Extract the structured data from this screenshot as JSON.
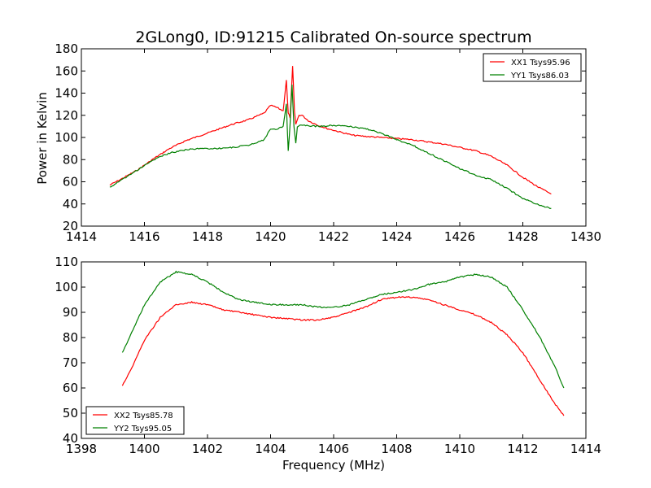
{
  "figure": {
    "xlabel": "Frequency (MHz)"
  },
  "chart_data": [
    {
      "type": "line",
      "title": "2GLong0, ID:91215 Calibrated On-source spectrum",
      "xlabel": "",
      "ylabel": "Power in Kelvin",
      "xlim": [
        1414,
        1430
      ],
      "ylim": [
        20,
        180
      ],
      "xticks": [
        1414,
        1416,
        1418,
        1420,
        1422,
        1424,
        1426,
        1428,
        1430
      ],
      "yticks": [
        20,
        40,
        60,
        80,
        100,
        120,
        140,
        160,
        180
      ],
      "grid": false,
      "legend_position": "top-right",
      "series": [
        {
          "name": "XX1 Tsys95.96",
          "color": "#ff0000",
          "points": [
            [
              1414.9,
              57
            ],
            [
              1415.3,
              63
            ],
            [
              1415.8,
              71
            ],
            [
              1416.3,
              81
            ],
            [
              1416.8,
              90
            ],
            [
              1417.3,
              97
            ],
            [
              1417.8,
              102
            ],
            [
              1418.3,
              107
            ],
            [
              1418.8,
              112
            ],
            [
              1419.3,
              116
            ],
            [
              1419.8,
              122
            ],
            [
              1420.0,
              129
            ],
            [
              1420.2,
              127
            ],
            [
              1420.4,
              124
            ],
            [
              1420.5,
              152
            ],
            [
              1420.56,
              122
            ],
            [
              1420.62,
              118
            ],
            [
              1420.7,
              164
            ],
            [
              1420.76,
              123
            ],
            [
              1420.8,
              112
            ],
            [
              1420.9,
              120
            ],
            [
              1421.0,
              120
            ],
            [
              1421.2,
              115
            ],
            [
              1421.5,
              111
            ],
            [
              1421.8,
              108
            ],
            [
              1422.2,
              105
            ],
            [
              1422.6,
              102
            ],
            [
              1423.0,
              101
            ],
            [
              1423.5,
              100
            ],
            [
              1424.0,
              99
            ],
            [
              1424.5,
              98
            ],
            [
              1425.0,
              96
            ],
            [
              1425.5,
              94
            ],
            [
              1426.0,
              91
            ],
            [
              1426.5,
              88
            ],
            [
              1427.0,
              83
            ],
            [
              1427.5,
              75
            ],
            [
              1428.0,
              64
            ],
            [
              1428.5,
              55
            ],
            [
              1428.9,
              49
            ]
          ]
        },
        {
          "name": "YY1 Tsys86.03",
          "color": "#008000",
          "points": [
            [
              1414.9,
              55
            ],
            [
              1415.3,
              62
            ],
            [
              1415.8,
              71
            ],
            [
              1416.3,
              80
            ],
            [
              1416.8,
              86
            ],
            [
              1417.3,
              89
            ],
            [
              1417.8,
              90
            ],
            [
              1418.3,
              90
            ],
            [
              1418.8,
              91
            ],
            [
              1419.3,
              93
            ],
            [
              1419.8,
              98
            ],
            [
              1420.0,
              108
            ],
            [
              1420.2,
              107
            ],
            [
              1420.4,
              110
            ],
            [
              1420.5,
              130
            ],
            [
              1420.56,
              88
            ],
            [
              1420.62,
              112
            ],
            [
              1420.68,
              148
            ],
            [
              1420.74,
              110
            ],
            [
              1420.8,
              95
            ],
            [
              1420.85,
              110
            ],
            [
              1421.0,
              111
            ],
            [
              1421.5,
              110
            ],
            [
              1422.0,
              111
            ],
            [
              1422.5,
              110
            ],
            [
              1423.0,
              108
            ],
            [
              1423.5,
              104
            ],
            [
              1424.0,
              98
            ],
            [
              1424.5,
              93
            ],
            [
              1425.0,
              86
            ],
            [
              1425.5,
              79
            ],
            [
              1426.0,
              72
            ],
            [
              1426.5,
              66
            ],
            [
              1427.0,
              62
            ],
            [
              1427.5,
              54
            ],
            [
              1428.0,
              45
            ],
            [
              1428.5,
              39
            ],
            [
              1428.9,
              36
            ]
          ]
        }
      ]
    },
    {
      "type": "line",
      "title": "",
      "xlabel": "Frequency (MHz)",
      "ylabel": "",
      "xlim": [
        1398,
        1414
      ],
      "ylim": [
        40,
        110
      ],
      "xticks": [
        1398,
        1400,
        1402,
        1404,
        1406,
        1408,
        1410,
        1412,
        1414
      ],
      "yticks": [
        40,
        50,
        60,
        70,
        80,
        90,
        100,
        110
      ],
      "grid": false,
      "legend_position": "bottom-left",
      "series": [
        {
          "name": "XX2 Tsys85.78",
          "color": "#ff0000",
          "points": [
            [
              1399.3,
              61
            ],
            [
              1399.6,
              68
            ],
            [
              1400.0,
              79
            ],
            [
              1400.5,
              88
            ],
            [
              1401.0,
              93
            ],
            [
              1401.5,
              94
            ],
            [
              1402.0,
              93
            ],
            [
              1402.5,
              91
            ],
            [
              1403.0,
              90
            ],
            [
              1403.5,
              89
            ],
            [
              1404.0,
              88
            ],
            [
              1404.5,
              87.5
            ],
            [
              1405.0,
              87
            ],
            [
              1405.5,
              87
            ],
            [
              1406.0,
              88
            ],
            [
              1406.5,
              90
            ],
            [
              1407.0,
              92
            ],
            [
              1407.5,
              95
            ],
            [
              1408.0,
              96
            ],
            [
              1408.5,
              96
            ],
            [
              1409.0,
              95
            ],
            [
              1409.5,
              93
            ],
            [
              1410.0,
              91
            ],
            [
              1410.5,
              89
            ],
            [
              1411.0,
              86
            ],
            [
              1411.5,
              81
            ],
            [
              1412.0,
              74
            ],
            [
              1412.5,
              64
            ],
            [
              1413.0,
              54
            ],
            [
              1413.3,
              49
            ]
          ]
        },
        {
          "name": "YY2 Tsys95.05",
          "color": "#008000",
          "points": [
            [
              1399.3,
              74
            ],
            [
              1399.6,
              82
            ],
            [
              1400.0,
              93
            ],
            [
              1400.5,
              102
            ],
            [
              1401.0,
              106
            ],
            [
              1401.5,
              105
            ],
            [
              1402.0,
              102
            ],
            [
              1402.5,
              98
            ],
            [
              1403.0,
              95
            ],
            [
              1403.5,
              94
            ],
            [
              1404.0,
              93
            ],
            [
              1404.5,
              93
            ],
            [
              1405.0,
              93
            ],
            [
              1405.5,
              92
            ],
            [
              1406.0,
              92
            ],
            [
              1406.5,
              93
            ],
            [
              1407.0,
              95
            ],
            [
              1407.5,
              97
            ],
            [
              1408.0,
              98
            ],
            [
              1408.5,
              99
            ],
            [
              1409.0,
              101
            ],
            [
              1409.5,
              102
            ],
            [
              1410.0,
              104
            ],
            [
              1410.5,
              105
            ],
            [
              1411.0,
              104
            ],
            [
              1411.5,
              100
            ],
            [
              1412.0,
              91
            ],
            [
              1412.5,
              81
            ],
            [
              1413.0,
              69
            ],
            [
              1413.3,
              60
            ]
          ]
        }
      ]
    }
  ]
}
